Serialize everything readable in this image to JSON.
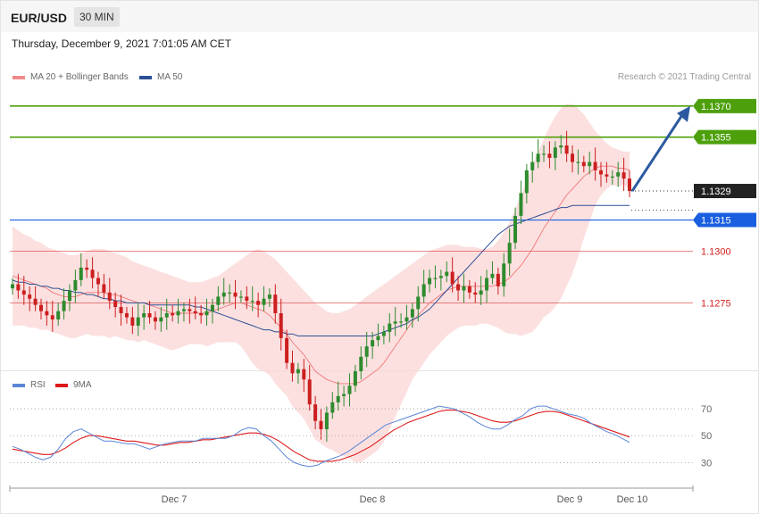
{
  "header": {
    "pair": "EUR/USD",
    "timeframe": "30 MIN"
  },
  "datetime": "Thursday, December 9, 2021 7:01:05 AM CET",
  "copyright": "Research © 2021 Trading Central",
  "colors": {
    "resistance": "#4da00c",
    "current": "#222222",
    "support": "#1a5fe0",
    "level": "#d42020",
    "bollinger": "#fbd6d6",
    "ma20": "#f07878",
    "ma50": "#2c4f94",
    "up": "#2e8b2e",
    "down": "#cc1f1f",
    "arrow": "#2c5aa0",
    "rsi": "#5b86d6",
    "rsi_ma": "#dd1a1a"
  },
  "chart_data": [
    {
      "type": "candlestick",
      "legend": [
        {
          "name": "MA 20 + Bollinger Bands",
          "color": "#f07878"
        },
        {
          "name": "MA 50",
          "color": "#2c4f94"
        }
      ],
      "x_ticks": [
        "Dec 7",
        "Dec 8",
        "Dec 9",
        "Dec 10"
      ],
      "ylim": [
        1.1242,
        1.1382
      ],
      "levels": [
        {
          "value": 1.137,
          "label": "1.1370",
          "kind": "resistance"
        },
        {
          "value": 1.1355,
          "label": "1.1355",
          "kind": "resistance"
        },
        {
          "value": 1.1329,
          "label": "1.1329",
          "kind": "current"
        },
        {
          "value": 1.1315,
          "label": "1.1315",
          "kind": "support"
        },
        {
          "value": 1.13,
          "label": "1.1300",
          "kind": "level"
        },
        {
          "value": 1.1275,
          "label": "1.1275",
          "kind": "level"
        }
      ],
      "closes": [
        1.1284,
        1.1281,
        1.1279,
        1.1277,
        1.1274,
        1.1271,
        1.1269,
        1.1267,
        1.1271,
        1.1276,
        1.1281,
        1.1286,
        1.1292,
        1.1291,
        1.1287,
        1.1284,
        1.128,
        1.1276,
        1.1273,
        1.127,
        1.1268,
        1.1264,
        1.1268,
        1.127,
        1.1268,
        1.1266,
        1.1268,
        1.127,
        1.1269,
        1.1271,
        1.1272,
        1.1271,
        1.127,
        1.1269,
        1.1271,
        1.1274,
        1.1278,
        1.128,
        1.128,
        1.1278,
        1.1278,
        1.1276,
        1.1276,
        1.1274,
        1.1277,
        1.1279,
        1.127,
        1.1258,
        1.1246,
        1.1241,
        1.1243,
        1.1238,
        1.1226,
        1.1218,
        1.1214,
        1.1222,
        1.1227,
        1.123,
        1.1231,
        1.1235,
        1.1242,
        1.1249,
        1.1254,
        1.1257,
        1.1259,
        1.1261,
        1.1265,
        1.1266,
        1.1266,
        1.1268,
        1.1272,
        1.1278,
        1.1284,
        1.1287,
        1.1287,
        1.1288,
        1.129,
        1.1284,
        1.1281,
        1.1283,
        1.128,
        1.1279,
        1.1281,
        1.1287,
        1.1289,
        1.1283,
        1.1294,
        1.1304,
        1.1317,
        1.1328,
        1.1339,
        1.1343,
        1.1347,
        1.1347,
        1.1345,
        1.135,
        1.1351,
        1.1347,
        1.1343,
        1.1343,
        1.1341,
        1.1343,
        1.1339,
        1.1337,
        1.1336,
        1.1336,
        1.1338,
        1.1335,
        1.1329
      ],
      "ma20": [
        1.1288,
        1.1287,
        1.1286,
        1.1285,
        1.1284,
        1.1283,
        1.1282,
        1.128,
        1.1279,
        1.1278,
        1.1278,
        1.1278,
        1.1279,
        1.128,
        1.128,
        1.128,
        1.128,
        1.1279,
        1.1279,
        1.1278,
        1.1277,
        1.1276,
        1.1275,
        1.1275,
        1.1274,
        1.1273,
        1.1272,
        1.1271,
        1.127,
        1.127,
        1.127,
        1.127,
        1.127,
        1.127,
        1.127,
        1.1271,
        1.1272,
        1.1273,
        1.1274,
        1.1275,
        1.1275,
        1.1274,
        1.1273,
        1.1272,
        1.1271,
        1.1269,
        1.1266,
        1.1263,
        1.126,
        1.1256,
        1.1253,
        1.125,
        1.1246,
        1.1242,
        1.124,
        1.1238,
        1.1237,
        1.1236,
        1.1236,
        1.1236,
        1.1236,
        1.1237,
        1.1239,
        1.1241,
        1.1243,
        1.1246,
        1.125,
        1.1254,
        1.1258,
        1.1262,
        1.1266,
        1.1269,
        1.1272,
        1.1275,
        1.1277,
        1.1279,
        1.1281,
        1.1282,
        1.1283,
        1.1283,
        1.1283,
        1.1283,
        1.1283,
        1.1283,
        1.1283,
        1.1284,
        1.1285,
        1.1287,
        1.129,
        1.1293,
        1.1297,
        1.1301,
        1.1306,
        1.1311,
        1.1315,
        1.1319,
        1.1323,
        1.1327,
        1.133,
        1.1333,
        1.1336,
        1.1338,
        1.134,
        1.1341,
        1.1341,
        1.1341,
        1.134,
        1.134,
        1.1339
      ],
      "ma50": [
        1.1286,
        1.1285,
        1.1285,
        1.1284,
        1.1284,
        1.1283,
        1.1283,
        1.1282,
        1.1282,
        1.1281,
        1.1281,
        1.128,
        1.128,
        1.1279,
        1.1279,
        1.1278,
        1.1277,
        1.1277,
        1.1276,
        1.1276,
        1.1275,
        1.1275,
        1.1275,
        1.1275,
        1.1274,
        1.1274,
        1.1274,
        1.1274,
        1.1274,
        1.1274,
        1.1274,
        1.1274,
        1.1273,
        1.1273,
        1.1272,
        1.1271,
        1.127,
        1.1269,
        1.1268,
        1.1267,
        1.1266,
        1.1265,
        1.1264,
        1.1263,
        1.1262,
        1.1262,
        1.1261,
        1.1261,
        1.126,
        1.126,
        1.1259,
        1.1259,
        1.1259,
        1.1259,
        1.1259,
        1.1259,
        1.1259,
        1.1259,
        1.1259,
        1.1259,
        1.1259,
        1.1259,
        1.1259,
        1.1259,
        1.126,
        1.1261,
        1.1262,
        1.1263,
        1.1264,
        1.1265,
        1.1267,
        1.1268,
        1.127,
        1.1272,
        1.1275,
        1.1278,
        1.1281,
        1.1284,
        1.1287,
        1.129,
        1.1293,
        1.1296,
        1.1299,
        1.1302,
        1.1305,
        1.1308,
        1.131,
        1.1312,
        1.1313,
        1.1314,
        1.1315,
        1.1316,
        1.1317,
        1.1318,
        1.1319,
        1.132,
        1.1321,
        1.1321,
        1.1322,
        1.1322,
        1.1322,
        1.1322,
        1.1322,
        1.1322,
        1.1322,
        1.1322,
        1.1322,
        1.1322,
        1.1322
      ],
      "bb_upper": [
        1.1312,
        1.131,
        1.1308,
        1.1307,
        1.1305,
        1.1304,
        1.1302,
        1.1301,
        1.13,
        1.1299,
        1.1298,
        1.1298,
        1.1299,
        1.13,
        1.1301,
        1.1301,
        1.1301,
        1.13,
        1.1299,
        1.1298,
        1.1297,
        1.1295,
        1.1294,
        1.1293,
        1.1292,
        1.1291,
        1.129,
        1.1289,
        1.1288,
        1.1287,
        1.1286,
        1.1285,
        1.1285,
        1.1285,
        1.1286,
        1.1287,
        1.1288,
        1.129,
        1.1292,
        1.1294,
        1.1296,
        1.1298,
        1.13,
        1.1301,
        1.13,
        1.1298,
        1.1296,
        1.1293,
        1.129,
        1.1287,
        1.1284,
        1.1281,
        1.1278,
        1.1275,
        1.1273,
        1.1271,
        1.127,
        1.127,
        1.1271,
        1.1272,
        1.1274,
        1.1276,
        1.1278,
        1.128,
        1.1282,
        1.1284,
        1.1286,
        1.1288,
        1.129,
        1.1292,
        1.1294,
        1.1296,
        1.1298,
        1.13,
        1.1301,
        1.1302,
        1.1303,
        1.1303,
        1.1303,
        1.1302,
        1.1302,
        1.1302,
        1.1301,
        1.1301,
        1.1302,
        1.1305,
        1.1309,
        1.1314,
        1.132,
        1.1327,
        1.1334,
        1.1341,
        1.1348,
        1.1354,
        1.136,
        1.1365,
        1.1369,
        1.1371,
        1.1371,
        1.1369,
        1.1366,
        1.1362,
        1.1358,
        1.1355,
        1.1352,
        1.135,
        1.1349,
        1.1348,
        1.1348
      ],
      "bb_lower": [
        1.1264,
        1.1264,
        1.1264,
        1.1263,
        1.1263,
        1.1262,
        1.1262,
        1.1261,
        1.126,
        1.1259,
        1.1258,
        1.1258,
        1.1259,
        1.126,
        1.1259,
        1.1259,
        1.1259,
        1.1258,
        1.1259,
        1.1258,
        1.1257,
        1.1257,
        1.1256,
        1.1257,
        1.1256,
        1.1255,
        1.1254,
        1.1253,
        1.1252,
        1.1253,
        1.1254,
        1.1255,
        1.1255,
        1.1255,
        1.1254,
        1.1255,
        1.1256,
        1.1256,
        1.1256,
        1.1256,
        1.1254,
        1.125,
        1.1246,
        1.1243,
        1.1242,
        1.124,
        1.1236,
        1.1233,
        1.123,
        1.1225,
        1.1222,
        1.1219,
        1.1214,
        1.1209,
        1.1207,
        1.1205,
        1.1204,
        1.1202,
        1.1201,
        1.12,
        1.1198,
        1.1198,
        1.12,
        1.1202,
        1.1204,
        1.1208,
        1.1214,
        1.122,
        1.1226,
        1.1232,
        1.1238,
        1.1242,
        1.1246,
        1.125,
        1.1253,
        1.1256,
        1.1259,
        1.1261,
        1.1263,
        1.1264,
        1.1264,
        1.1264,
        1.1265,
        1.1265,
        1.1264,
        1.1263,
        1.1261,
        1.126,
        1.126,
        1.1259,
        1.126,
        1.1261,
        1.1264,
        1.1268,
        1.127,
        1.1273,
        1.1277,
        1.1283,
        1.1289,
        1.1297,
        1.1306,
        1.1314,
        1.1322,
        1.1327,
        1.133,
        1.1332,
        1.1331,
        1.1332,
        1.133
      ]
    },
    {
      "type": "line",
      "legend": [
        {
          "name": "RSI",
          "color": "#5b86d6"
        },
        {
          "name": "9MA",
          "color": "#dd1a1a"
        }
      ],
      "ylim": [
        15,
        80
      ],
      "y_ticks": [
        70,
        50,
        30
      ],
      "rsi": [
        42,
        40,
        37,
        34,
        32,
        34,
        40,
        48,
        53,
        55,
        52,
        49,
        46,
        46,
        45,
        44,
        44,
        42,
        40,
        42,
        44,
        45,
        46,
        46,
        46,
        48,
        48,
        48,
        48,
        50,
        54,
        56,
        55,
        50,
        46,
        40,
        34,
        30,
        28,
        27,
        28,
        31,
        33,
        35,
        38,
        42,
        46,
        50,
        54,
        58,
        60,
        62,
        64,
        66,
        68,
        70,
        72,
        71,
        70,
        67,
        64,
        60,
        57,
        55,
        55,
        58,
        62,
        65,
        70,
        72,
        72,
        70,
        68,
        66,
        65,
        63,
        59,
        56,
        53,
        51,
        48,
        45
      ],
      "rsi_ma": [
        40,
        39,
        38,
        37,
        36,
        36,
        38,
        41,
        45,
        48,
        50,
        50,
        49,
        48,
        47,
        46,
        46,
        45,
        44,
        43,
        43,
        44,
        45,
        45,
        46,
        47,
        47,
        48,
        49,
        50,
        51,
        52,
        52,
        51,
        49,
        46,
        42,
        38,
        35,
        32,
        31,
        31,
        31,
        32,
        34,
        36,
        39,
        42,
        46,
        50,
        54,
        57,
        60,
        62,
        64,
        66,
        68,
        69,
        69,
        68,
        67,
        65,
        63,
        61,
        60,
        60,
        61,
        63,
        65,
        67,
        68,
        68,
        67,
        65,
        63,
        61,
        59,
        57,
        55,
        53,
        51,
        49
      ]
    }
  ]
}
